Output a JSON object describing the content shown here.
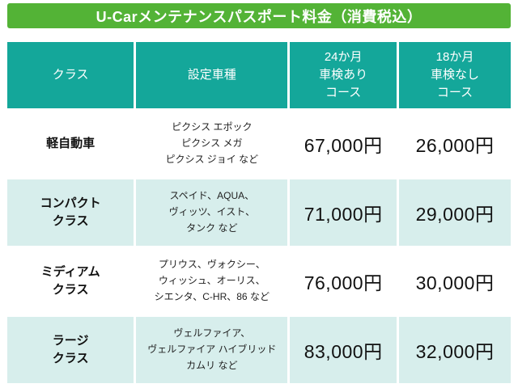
{
  "banner": {
    "title": "U-Carメンテナンスパスポート料金（消費税込）",
    "background_color": "#53b336"
  },
  "table": {
    "header_color": "#14a79a",
    "alt_row_color": "#d7eeec",
    "headers": [
      "クラス",
      "設定車種",
      "24か月\n車検あり\nコース",
      "18か月\n車検なし\nコース"
    ],
    "rows": [
      {
        "class": "軽自動車",
        "models": "ピクシス エポック\nピクシス メガ\nピクシス ジョイ など",
        "price24": "67,000円",
        "price18": "26,000円"
      },
      {
        "class": "コンパクト\nクラス",
        "models": "スペイド、AQUA、\nヴィッツ、イスト、\nタンク など",
        "price24": "71,000円",
        "price18": "29,000円"
      },
      {
        "class": "ミディアム\nクラス",
        "models": "プリウス、ヴォクシー、\nウィッシュ、オーリス、\nシエンタ、C-HR、86 など",
        "price24": "76,000円",
        "price18": "30,000円"
      },
      {
        "class": "ラージ\nクラス",
        "models": "ヴェルファイア、\nヴェルファイア ハイブリッド\nカムリ など",
        "price24": "83,000円",
        "price18": "32,000円"
      }
    ]
  }
}
